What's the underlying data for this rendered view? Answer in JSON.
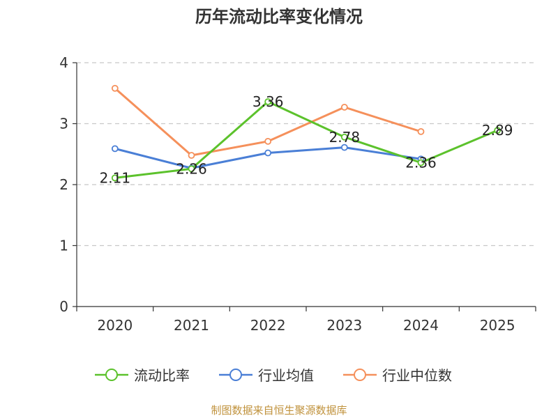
{
  "chart_data": {
    "type": "line",
    "title": "历年流动比率变化情况",
    "categories": [
      "2020",
      "2021",
      "2022",
      "2023",
      "2024",
      "2025"
    ],
    "ylim": [
      0,
      4
    ],
    "yticks": [
      "0",
      "1",
      "2",
      "3",
      "4"
    ],
    "grid": true,
    "legend_position": "bottom",
    "series": [
      {
        "name": "流动比率",
        "color": "#5cc22c",
        "values": [
          2.11,
          2.26,
          3.36,
          2.78,
          2.36,
          2.89
        ],
        "labels": [
          "2.11",
          "2.26",
          "3.36",
          "2.78",
          "2.36",
          "2.89"
        ]
      },
      {
        "name": "行业均值",
        "color": "#4a7fd6",
        "values": [
          2.59,
          2.27,
          2.52,
          2.61,
          2.42,
          null
        ]
      },
      {
        "name": "行业中位数",
        "color": "#f5905b",
        "values": [
          3.58,
          2.48,
          2.71,
          3.27,
          2.87,
          null
        ]
      }
    ]
  },
  "source": "制图数据来自恒生聚源数据库"
}
